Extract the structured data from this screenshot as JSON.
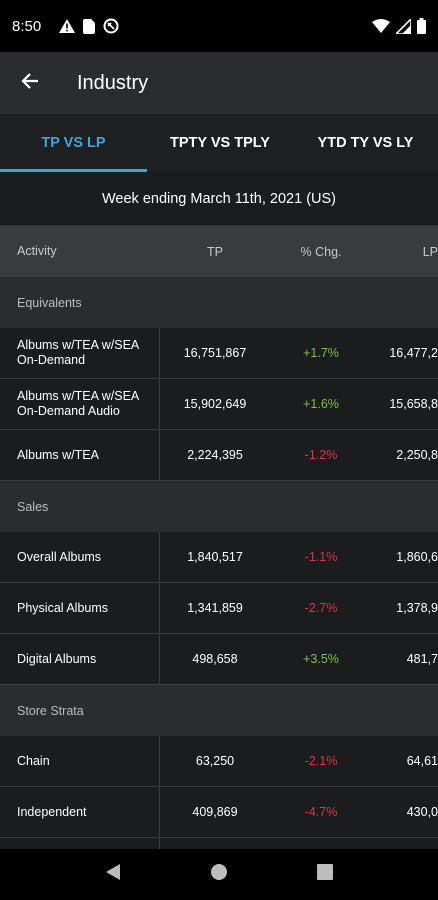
{
  "status": {
    "time": "8:50"
  },
  "app_bar": {
    "title": "Industry"
  },
  "tabs": [
    {
      "label": "TP VS LP",
      "active": true
    },
    {
      "label": "TPTY VS TPLY",
      "active": false
    },
    {
      "label": "YTD TY VS LY",
      "active": false
    }
  ],
  "subheader": "Week ending March 11th, 2021 (US)",
  "table": {
    "columns": [
      "Activity",
      "TP",
      "% Chg.",
      "LP"
    ],
    "sections": [
      {
        "title": "Equivalents",
        "rows": [
          {
            "activity": "Albums w/TEA w/SEA On-Demand",
            "tp": "16,751,867",
            "chg": "+1.7%",
            "lp": "16,477,2",
            "trend": "pos"
          },
          {
            "activity": "Albums w/TEA w/SEA On-Demand Audio",
            "tp": "15,902,649",
            "chg": "+1.6%",
            "lp": "15,658,8",
            "trend": "pos"
          },
          {
            "activity": "Albums w/TEA",
            "tp": "2,224,395",
            "chg": "-1.2%",
            "lp": "2,250,8",
            "trend": "neg"
          }
        ]
      },
      {
        "title": "Sales",
        "rows": [
          {
            "activity": "Overall Albums",
            "tp": "1,840,517",
            "chg": "-1.1%",
            "lp": "1,860,6",
            "trend": "neg"
          },
          {
            "activity": "Physical Albums",
            "tp": "1,341,859",
            "chg": "-2.7%",
            "lp": "1,378,9",
            "trend": "neg"
          },
          {
            "activity": "Digital Albums",
            "tp": "498,658",
            "chg": "+3.5%",
            "lp": "481,7",
            "trend": "pos"
          }
        ]
      },
      {
        "title": "Store Strata",
        "rows": [
          {
            "activity": "Chain",
            "tp": "63,250",
            "chg": "-2.1%",
            "lp": "64,61",
            "trend": "neg"
          },
          {
            "activity": "Independent",
            "tp": "409,869",
            "chg": "-4.7%",
            "lp": "430,0",
            "trend": "neg"
          }
        ]
      }
    ]
  },
  "colors": {
    "accent": "#3aa6e0",
    "positive": "#7dc43c",
    "negative": "#e0353e"
  }
}
